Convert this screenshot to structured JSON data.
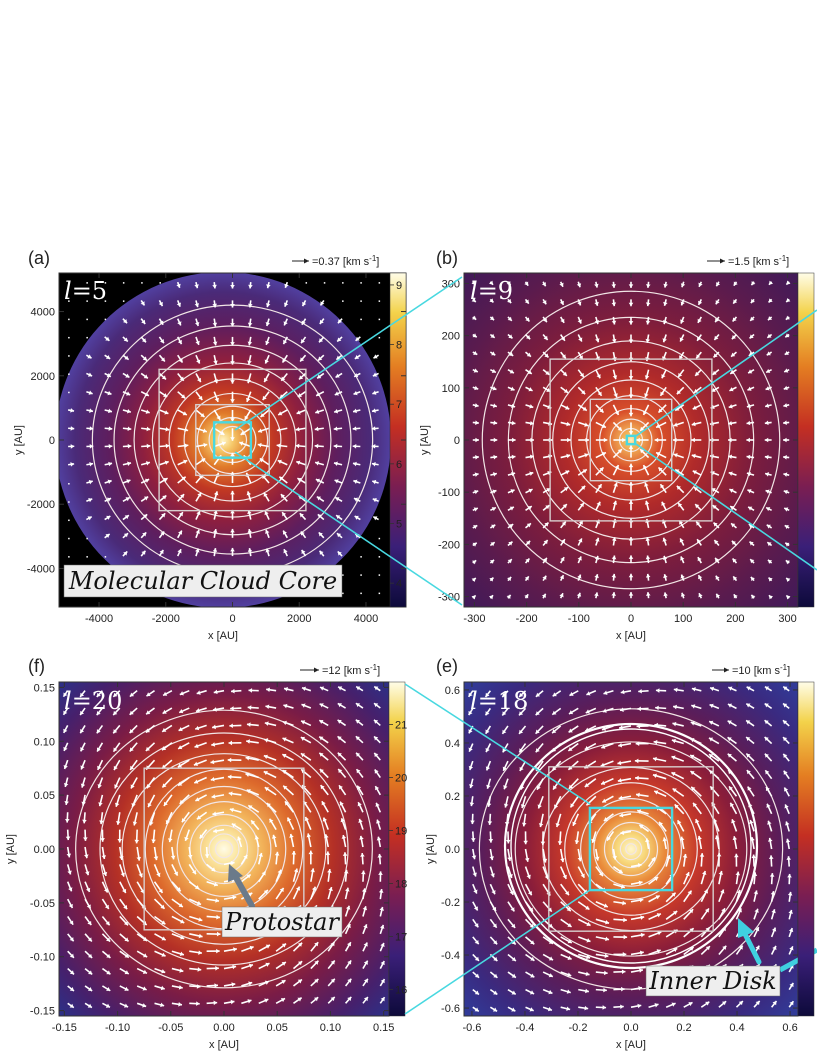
{
  "figure": {
    "colors": {
      "connector": "#48d8e0",
      "vectors": "#ffffff",
      "contours": "#f2e6e6",
      "background": "#ffffff"
    }
  },
  "chart_data": [
    {
      "type": "heatmap",
      "panel": "(a)",
      "level": "l=5",
      "level_var": "l",
      "level_value": "=5",
      "xlabel": "x [AU]",
      "ylabel": "y [AU]",
      "xlim": [
        -5200,
        5200
      ],
      "ylim": [
        -5200,
        5200
      ],
      "xticks": [
        -4000,
        -2000,
        0,
        2000,
        4000
      ],
      "yticks": [
        -4000,
        -2000,
        0,
        2000,
        4000
      ],
      "colorbar_range": [
        3.6,
        9.2
      ],
      "colorbar_ticks": [
        4,
        5,
        6,
        7,
        8,
        9
      ],
      "velocity_scale": "=0.37 [km s",
      "velocity_unit_exp": "-1",
      "velocity_unit_close": "]",
      "flow": "inflow",
      "annotation": "Molecular Cloud Core",
      "boxes": [
        {
          "half": 2200
        },
        {
          "half": 1100
        },
        {
          "half": 550,
          "highlight": true
        }
      ],
      "contour_radii": [
        420,
        700,
        1050,
        1450,
        1900,
        2400,
        2950,
        3550,
        4200
      ],
      "cloud_radius": 4900
    },
    {
      "type": "heatmap",
      "panel": "(b)",
      "level": "l=9",
      "level_var": "l",
      "level_value": "=9",
      "xlabel": "x [AU]",
      "ylabel": "y [AU]",
      "xlim": [
        -320,
        320
      ],
      "ylim": [
        -320,
        320
      ],
      "xticks": [
        -300,
        -200,
        -100,
        0,
        100,
        200,
        300
      ],
      "yticks": [
        -300,
        -200,
        -100,
        0,
        100,
        200,
        300
      ],
      "colorbar_range": [
        3.6,
        9.2
      ],
      "colorbar_ticks": [],
      "velocity_scale": "=1.5 [km s",
      "velocity_unit_exp": "-1",
      "velocity_unit_close": "]",
      "flow": "inflow",
      "annotation": "",
      "boxes": [
        {
          "half": 155
        },
        {
          "half": 78
        },
        {
          "half": 8,
          "highlight": true
        }
      ],
      "contour_radii": [
        22,
        40,
        60,
        85,
        115,
        150,
        190,
        235,
        285
      ],
      "cloud_radius": 0
    },
    {
      "type": "heatmap",
      "panel": "(f)",
      "level": "l=20",
      "level_var": "l",
      "level_value": "=20",
      "xlabel": "x [AU]",
      "ylabel": "y [AU]",
      "xlim": [
        -0.155,
        0.155
      ],
      "ylim": [
        -0.155,
        0.155
      ],
      "xticks": [
        -0.15,
        -0.1,
        -0.05,
        0.0,
        0.05,
        0.1,
        0.15
      ],
      "yticks": [
        -0.15,
        -0.1,
        -0.05,
        0.0,
        0.05,
        0.1,
        0.15
      ],
      "colorbar_range": [
        15.5,
        21.8
      ],
      "colorbar_ticks": [
        16,
        17,
        18,
        19,
        20,
        21
      ],
      "velocity_scale": "=12 [km s",
      "velocity_unit_exp": "-1",
      "velocity_unit_close": "]",
      "flow": "rotation",
      "annotation": "Protostar",
      "boxes": [
        {
          "half": 0.075
        }
      ],
      "contour_radii": [
        0.008,
        0.014,
        0.022,
        0.032,
        0.044,
        0.058,
        0.074,
        0.092,
        0.112,
        0.134
      ],
      "cloud_radius": 0
    },
    {
      "type": "heatmap",
      "panel": "(e)",
      "level": "l=18",
      "level_var": "l",
      "level_value": "=18",
      "xlabel": "x [AU]",
      "ylabel": "y [AU]",
      "xlim": [
        -0.63,
        0.63
      ],
      "ylim": [
        -0.63,
        0.63
      ],
      "xticks": [
        -0.6,
        -0.4,
        -0.2,
        0.0,
        0.2,
        0.4,
        0.6
      ],
      "yticks": [
        -0.6,
        -0.4,
        -0.2,
        0.0,
        0.2,
        0.4,
        0.6
      ],
      "colorbar_range": [
        15.5,
        21.8
      ],
      "colorbar_ticks": [],
      "velocity_scale": "=10 [km s",
      "velocity_unit_exp": "-1",
      "velocity_unit_close": "]",
      "flow": "rotation",
      "annotation": "Inner Disk",
      "boxes": [
        {
          "half": 0.31
        },
        {
          "half": 0.155,
          "highlight": true
        }
      ],
      "contour_radii": [
        0.02,
        0.04,
        0.07,
        0.1,
        0.14,
        0.19,
        0.25,
        0.32,
        0.42,
        0.55
      ],
      "cloud_radius": 0
    }
  ]
}
